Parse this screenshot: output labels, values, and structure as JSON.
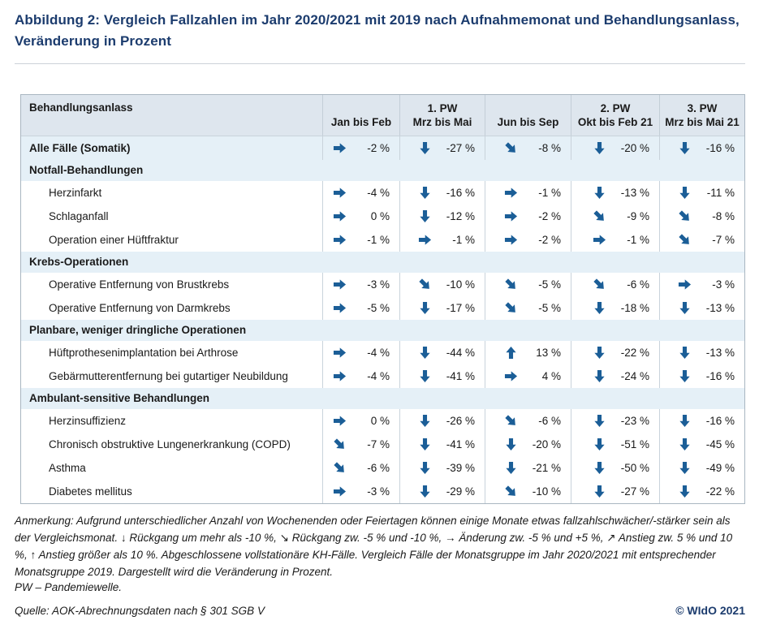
{
  "title": "Abbildung 2: Vergleich Fallzahlen im Jahr 2020/2021 mit 2019 nach Aufnahmemonat und Behandlungsanlass, Veränderung in Prozent",
  "colors": {
    "navy": "#1c3c6e",
    "arrow_blue": "#1b5e97",
    "header_bg": "#dee6ee",
    "row_blue_bg": "#e5f0f7"
  },
  "table": {
    "col_headers": [
      {
        "top": "",
        "bottom": "Behandlungsanlass"
      },
      {
        "top": "",
        "bottom": "Jan bis Feb"
      },
      {
        "top": "1. PW",
        "bottom": "Mrz bis Mai"
      },
      {
        "top": "",
        "bottom": "Jun bis Sep"
      },
      {
        "top": "2. PW",
        "bottom": "Okt bis Feb 21"
      },
      {
        "top": "3. PW",
        "bottom": "Mrz bis Mai 21"
      }
    ],
    "summary": {
      "label": "Alle Fälle (Somatik)",
      "cells": [
        [
          "right",
          "-2 %"
        ],
        [
          "down",
          "-27 %"
        ],
        [
          "down-right",
          "-8 %"
        ],
        [
          "down",
          "-20 %"
        ],
        [
          "down",
          "-16 %"
        ]
      ]
    },
    "sections": [
      {
        "label": "Notfall-Behandlungen",
        "rows": [
          {
            "label": "Herzinfarkt",
            "cells": [
              [
                "right",
                "-4 %"
              ],
              [
                "down",
                "-16 %"
              ],
              [
                "right",
                "-1 %"
              ],
              [
                "down",
                "-13 %"
              ],
              [
                "down",
                "-11 %"
              ]
            ]
          },
          {
            "label": "Schlaganfall",
            "cells": [
              [
                "right",
                "0 %"
              ],
              [
                "down",
                "-12 %"
              ],
              [
                "right",
                "-2 %"
              ],
              [
                "down-right",
                "-9 %"
              ],
              [
                "down-right",
                "-8 %"
              ]
            ]
          },
          {
            "label": "Operation einer Hüftfraktur",
            "cells": [
              [
                "right",
                "-1 %"
              ],
              [
                "right",
                "-1 %"
              ],
              [
                "right",
                "-2 %"
              ],
              [
                "right",
                "-1 %"
              ],
              [
                "down-right",
                "-7 %"
              ]
            ]
          }
        ]
      },
      {
        "label": "Krebs-Operationen",
        "rows": [
          {
            "label": "Operative Entfernung von Brustkrebs",
            "cells": [
              [
                "right",
                "-3 %"
              ],
              [
                "down-right",
                "-10 %"
              ],
              [
                "down-right",
                "-5 %"
              ],
              [
                "down-right",
                "-6 %"
              ],
              [
                "right",
                "-3 %"
              ]
            ]
          },
          {
            "label": "Operative Entfernung von Darmkrebs",
            "cells": [
              [
                "right",
                "-5 %"
              ],
              [
                "down",
                "-17 %"
              ],
              [
                "down-right",
                "-5 %"
              ],
              [
                "down",
                "-18 %"
              ],
              [
                "down",
                "-13 %"
              ]
            ]
          }
        ]
      },
      {
        "label": "Planbare, weniger dringliche Operationen",
        "rows": [
          {
            "label": "Hüftprothesenimplantation bei Arthrose",
            "cells": [
              [
                "right",
                "-4 %"
              ],
              [
                "down",
                "-44 %"
              ],
              [
                "up",
                "13 %"
              ],
              [
                "down",
                "-22 %"
              ],
              [
                "down",
                "-13 %"
              ]
            ]
          },
          {
            "label": "Gebärmutterentfernung bei gutartiger Neubildung",
            "cells": [
              [
                "right",
                "-4 %"
              ],
              [
                "down",
                "-41 %"
              ],
              [
                "right",
                "4 %"
              ],
              [
                "down",
                "-24 %"
              ],
              [
                "down",
                "-16 %"
              ]
            ]
          }
        ]
      },
      {
        "label": "Ambulant-sensitive Behandlungen",
        "rows": [
          {
            "label": "Herzinsuffizienz",
            "cells": [
              [
                "right",
                "0 %"
              ],
              [
                "down",
                "-26 %"
              ],
              [
                "down-right",
                "-6 %"
              ],
              [
                "down",
                "-23 %"
              ],
              [
                "down",
                "-16 %"
              ]
            ]
          },
          {
            "label": "Chronisch obstruktive Lungenerkrankung (COPD)",
            "cells": [
              [
                "down-right",
                "-7 %"
              ],
              [
                "down",
                "-41 %"
              ],
              [
                "down",
                "-20 %"
              ],
              [
                "down",
                "-51 %"
              ],
              [
                "down",
                "-45 %"
              ]
            ]
          },
          {
            "label": "Asthma",
            "cells": [
              [
                "down-right",
                "-6 %"
              ],
              [
                "down",
                "-39 %"
              ],
              [
                "down",
                "-21 %"
              ],
              [
                "down",
                "-50 %"
              ],
              [
                "down",
                "-49 %"
              ]
            ]
          },
          {
            "label": "Diabetes mellitus",
            "cells": [
              [
                "right",
                "-3 %"
              ],
              [
                "down",
                "-29 %"
              ],
              [
                "down-right",
                "-10 %"
              ],
              [
                "down",
                "-27 %"
              ],
              [
                "down",
                "-22 %"
              ]
            ]
          }
        ]
      }
    ]
  },
  "notes": {
    "anmerkung": "Anmerkung: Aufgrund unterschiedlicher Anzahl von Wochenenden oder Feiertagen können einige Monate etwas fallzahlschwächer/-stärker sein als der Vergleichsmonat. ↓ Rückgang um mehr als -10 %, ↘ Rückgang zw. -5 % und -10 %, → Änderung zw. -5 % und +5 %, ↗ Anstieg zw. 5 % und 10 %, ↑ Anstieg größer als 10 %. Abgeschlossene vollstationäre KH-Fälle. Vergleich Fälle der Monatsgruppe im Jahr 2020/2021 mit entsprechender Monatsgruppe 2019. Dargestellt wird die Veränderung in Prozent.",
    "pw": "PW – Pandemiewelle.",
    "quelle": "Quelle: AOK-Abrechnungsdaten nach § 301 SGB V",
    "copyright": "© WIdO 2021"
  }
}
